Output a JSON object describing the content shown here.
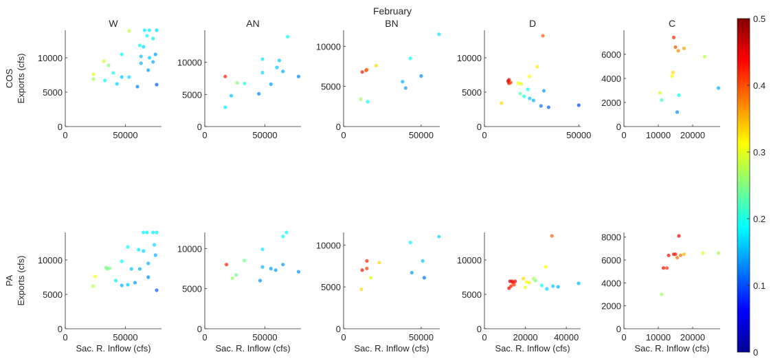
{
  "chart_data": {
    "type": "scatter",
    "title": "February",
    "row_labels": [
      "COS",
      "PA"
    ],
    "column_titles": [
      "W",
      "AN",
      "BN",
      "D",
      "C"
    ],
    "ylabel": "Exports (cfs)",
    "xlabel": "Sac. R. Inflow (cfs)",
    "colorbar": {
      "colormap": "jet",
      "range": [
        0,
        0.5
      ],
      "ticks": [
        "0",
        "0.1",
        "0.2",
        "0.3",
        "0.4",
        "0.5"
      ]
    },
    "panels": [
      {
        "row": "COS",
        "column": "W",
        "xlim": [
          0,
          80000
        ],
        "ylim": [
          0,
          14000
        ],
        "xticks": [
          0,
          50000
        ],
        "yticks": [
          0,
          5000,
          10000
        ],
        "points": [
          {
            "x": 23500,
            "y": 7600,
            "c": 0.3
          },
          {
            "x": 23500,
            "y": 6900,
            "c": 0.27
          },
          {
            "x": 32000,
            "y": 9500,
            "c": 0.29
          },
          {
            "x": 33000,
            "y": 6700,
            "c": 0.19
          },
          {
            "x": 36000,
            "y": 8900,
            "c": 0.25
          },
          {
            "x": 40000,
            "y": 7800,
            "c": 0.2
          },
          {
            "x": 43000,
            "y": 6200,
            "c": 0.17
          },
          {
            "x": 47000,
            "y": 10500,
            "c": 0.19
          },
          {
            "x": 47000,
            "y": 7200,
            "c": 0.16
          },
          {
            "x": 53000,
            "y": 7200,
            "c": 0.17
          },
          {
            "x": 53000,
            "y": 13900,
            "c": 0.28
          },
          {
            "x": 60000,
            "y": 5800,
            "c": 0.13
          },
          {
            "x": 62000,
            "y": 11800,
            "c": 0.19
          },
          {
            "x": 63000,
            "y": 10200,
            "c": 0.16
          },
          {
            "x": 63000,
            "y": 9200,
            "c": 0.15
          },
          {
            "x": 65000,
            "y": 11600,
            "c": 0.17
          },
          {
            "x": 66000,
            "y": 14000,
            "c": 0.18
          },
          {
            "x": 68000,
            "y": 13200,
            "c": 0.19
          },
          {
            "x": 69000,
            "y": 8200,
            "c": 0.14
          },
          {
            "x": 70000,
            "y": 14000,
            "c": 0.18
          },
          {
            "x": 70000,
            "y": 10000,
            "c": 0.16
          },
          {
            "x": 73000,
            "y": 12800,
            "c": 0.18
          },
          {
            "x": 73000,
            "y": 9400,
            "c": 0.15
          },
          {
            "x": 75000,
            "y": 10500,
            "c": 0.14
          },
          {
            "x": 76000,
            "y": 14000,
            "c": 0.17
          },
          {
            "x": 76000,
            "y": 6100,
            "c": 0.11
          }
        ]
      },
      {
        "row": "COS",
        "column": "AN",
        "xlim": [
          0,
          80000
        ],
        "ylim": [
          0,
          15000
        ],
        "xticks": [
          0,
          50000
        ],
        "yticks": [
          0,
          5000,
          10000
        ],
        "points": [
          {
            "x": 17000,
            "y": 7800,
            "c": 0.42
          },
          {
            "x": 17000,
            "y": 3000,
            "c": 0.18
          },
          {
            "x": 22000,
            "y": 4800,
            "c": 0.16
          },
          {
            "x": 27000,
            "y": 6800,
            "c": 0.25
          },
          {
            "x": 33000,
            "y": 6700,
            "c": 0.2
          },
          {
            "x": 45000,
            "y": 5100,
            "c": 0.13
          },
          {
            "x": 48000,
            "y": 8400,
            "c": 0.17
          },
          {
            "x": 48000,
            "y": 10500,
            "c": 0.18
          },
          {
            "x": 55000,
            "y": 6600,
            "c": 0.14
          },
          {
            "x": 60000,
            "y": 9200,
            "c": 0.16
          },
          {
            "x": 62000,
            "y": 10300,
            "c": 0.16
          },
          {
            "x": 65000,
            "y": 8600,
            "c": 0.15
          },
          {
            "x": 69000,
            "y": 14000,
            "c": 0.19
          },
          {
            "x": 78000,
            "y": 7800,
            "c": 0.13
          }
        ]
      },
      {
        "row": "COS",
        "column": "BN",
        "xlim": [
          0,
          62000
        ],
        "ylim": [
          0,
          12000
        ],
        "xticks": [
          0,
          50000
        ],
        "yticks": [
          0,
          5000,
          10000
        ],
        "points": [
          {
            "x": 11000,
            "y": 3400,
            "c": 0.27
          },
          {
            "x": 12000,
            "y": 6800,
            "c": 0.43
          },
          {
            "x": 14500,
            "y": 7000,
            "c": 0.41
          },
          {
            "x": 15000,
            "y": 7100,
            "c": 0.39
          },
          {
            "x": 15500,
            "y": 3100,
            "c": 0.19
          },
          {
            "x": 21000,
            "y": 7600,
            "c": 0.33
          },
          {
            "x": 38000,
            "y": 5600,
            "c": 0.15
          },
          {
            "x": 40000,
            "y": 4800,
            "c": 0.14
          },
          {
            "x": 43000,
            "y": 8500,
            "c": 0.19
          },
          {
            "x": 50000,
            "y": 6300,
            "c": 0.13
          },
          {
            "x": 61500,
            "y": 11500,
            "c": 0.18
          }
        ]
      },
      {
        "row": "COS",
        "column": "D",
        "xlim": [
          0,
          51000
        ],
        "ylim": [
          0,
          14000
        ],
        "xticks": [
          0,
          50000
        ],
        "yticks": [
          0,
          5000,
          10000
        ],
        "points": [
          {
            "x": 9000,
            "y": 3400,
            "c": 0.33
          },
          {
            "x": 12500,
            "y": 6600,
            "c": 0.46
          },
          {
            "x": 13000,
            "y": 6800,
            "c": 0.45
          },
          {
            "x": 13000,
            "y": 6300,
            "c": 0.44
          },
          {
            "x": 14000,
            "y": 6400,
            "c": 0.4
          },
          {
            "x": 18000,
            "y": 6300,
            "c": 0.31
          },
          {
            "x": 19000,
            "y": 4800,
            "c": 0.23
          },
          {
            "x": 19500,
            "y": 6200,
            "c": 0.3
          },
          {
            "x": 21000,
            "y": 4400,
            "c": 0.2
          },
          {
            "x": 23000,
            "y": 5400,
            "c": 0.19
          },
          {
            "x": 24000,
            "y": 7300,
            "c": 0.31
          },
          {
            "x": 24000,
            "y": 4100,
            "c": 0.16
          },
          {
            "x": 26000,
            "y": 3800,
            "c": 0.15
          },
          {
            "x": 28000,
            "y": 8700,
            "c": 0.32
          },
          {
            "x": 30000,
            "y": 3000,
            "c": 0.12
          },
          {
            "x": 31000,
            "y": 13200,
            "c": 0.39
          },
          {
            "x": 31500,
            "y": 5200,
            "c": 0.14
          },
          {
            "x": 34000,
            "y": 2800,
            "c": 0.11
          },
          {
            "x": 50000,
            "y": 3100,
            "c": 0.1
          }
        ]
      },
      {
        "row": "COS",
        "column": "C",
        "xlim": [
          0,
          28000
        ],
        "ylim": [
          0,
          8000
        ],
        "xticks": [
          0,
          10000,
          20000
        ],
        "yticks": [
          0,
          2000,
          4000,
          6000
        ],
        "points": [
          {
            "x": 10500,
            "y": 2800,
            "c": 0.29
          },
          {
            "x": 11000,
            "y": 2200,
            "c": 0.22
          },
          {
            "x": 14000,
            "y": 4200,
            "c": 0.31
          },
          {
            "x": 14300,
            "y": 4500,
            "c": 0.33
          },
          {
            "x": 14500,
            "y": 7400,
            "c": 0.42
          },
          {
            "x": 15000,
            "y": 6600,
            "c": 0.4
          },
          {
            "x": 15500,
            "y": 1200,
            "c": 0.13
          },
          {
            "x": 15800,
            "y": 6300,
            "c": 0.37
          },
          {
            "x": 16000,
            "y": 2600,
            "c": 0.19
          },
          {
            "x": 17500,
            "y": 6500,
            "c": 0.36
          },
          {
            "x": 23500,
            "y": 5800,
            "c": 0.28
          },
          {
            "x": 27500,
            "y": 3200,
            "c": 0.15
          }
        ]
      },
      {
        "row": "PA",
        "column": "W",
        "xlim": [
          0,
          80000
        ],
        "ylim": [
          0,
          14000
        ],
        "xticks": [
          0,
          50000
        ],
        "yticks": [
          0,
          5000,
          10000
        ],
        "points": [
          {
            "x": 23000,
            "y": 6200,
            "c": 0.28
          },
          {
            "x": 25000,
            "y": 7600,
            "c": 0.31
          },
          {
            "x": 34000,
            "y": 8900,
            "c": 0.25
          },
          {
            "x": 35000,
            "y": 8700,
            "c": 0.24
          },
          {
            "x": 37000,
            "y": 8800,
            "c": 0.25
          },
          {
            "x": 42000,
            "y": 7000,
            "c": 0.18
          },
          {
            "x": 47000,
            "y": 9800,
            "c": 0.19
          },
          {
            "x": 47000,
            "y": 6300,
            "c": 0.15
          },
          {
            "x": 52000,
            "y": 6400,
            "c": 0.16
          },
          {
            "x": 52000,
            "y": 11900,
            "c": 0.19
          },
          {
            "x": 55000,
            "y": 8700,
            "c": 0.16
          },
          {
            "x": 58000,
            "y": 6700,
            "c": 0.14
          },
          {
            "x": 61000,
            "y": 11500,
            "c": 0.18
          },
          {
            "x": 62000,
            "y": 8700,
            "c": 0.15
          },
          {
            "x": 65000,
            "y": 11300,
            "c": 0.17
          },
          {
            "x": 65000,
            "y": 14000,
            "c": 0.18
          },
          {
            "x": 68000,
            "y": 14000,
            "c": 0.18
          },
          {
            "x": 69000,
            "y": 9500,
            "c": 0.15
          },
          {
            "x": 69000,
            "y": 7500,
            "c": 0.13
          },
          {
            "x": 73000,
            "y": 14000,
            "c": 0.18
          },
          {
            "x": 74000,
            "y": 12200,
            "c": 0.17
          },
          {
            "x": 75000,
            "y": 10700,
            "c": 0.15
          },
          {
            "x": 76000,
            "y": 14000,
            "c": 0.18
          },
          {
            "x": 76000,
            "y": 5600,
            "c": 0.11
          }
        ]
      },
      {
        "row": "PA",
        "column": "AN",
        "xlim": [
          0,
          80000
        ],
        "ylim": [
          0,
          12000
        ],
        "xticks": [
          0,
          50000
        ],
        "yticks": [
          0,
          5000,
          10000
        ],
        "points": [
          {
            "x": 18000,
            "y": 8000,
            "c": 0.42
          },
          {
            "x": 23000,
            "y": 6300,
            "c": 0.26
          },
          {
            "x": 26000,
            "y": 6700,
            "c": 0.24
          },
          {
            "x": 33000,
            "y": 8500,
            "c": 0.24
          },
          {
            "x": 46000,
            "y": 6000,
            "c": 0.13
          },
          {
            "x": 48000,
            "y": 9900,
            "c": 0.18
          },
          {
            "x": 48000,
            "y": 7700,
            "c": 0.15
          },
          {
            "x": 55000,
            "y": 7500,
            "c": 0.14
          },
          {
            "x": 59000,
            "y": 7300,
            "c": 0.14
          },
          {
            "x": 65000,
            "y": 8000,
            "c": 0.14
          },
          {
            "x": 65000,
            "y": 11500,
            "c": 0.19
          },
          {
            "x": 68000,
            "y": 12000,
            "c": 0.19
          },
          {
            "x": 78000,
            "y": 7100,
            "c": 0.13
          }
        ]
      },
      {
        "row": "PA",
        "column": "BN",
        "xlim": [
          0,
          62000
        ],
        "ylim": [
          0,
          11500
        ],
        "xticks": [
          0,
          50000
        ],
        "yticks": [
          0,
          5000,
          10000
        ],
        "points": [
          {
            "x": 11500,
            "y": 4700,
            "c": 0.33
          },
          {
            "x": 12000,
            "y": 7000,
            "c": 0.43
          },
          {
            "x": 15000,
            "y": 8100,
            "c": 0.42
          },
          {
            "x": 15000,
            "y": 7200,
            "c": 0.41
          },
          {
            "x": 17500,
            "y": 6100,
            "c": 0.3
          },
          {
            "x": 23000,
            "y": 7900,
            "c": 0.33
          },
          {
            "x": 43000,
            "y": 10300,
            "c": 0.19
          },
          {
            "x": 44000,
            "y": 6700,
            "c": 0.14
          },
          {
            "x": 51000,
            "y": 8100,
            "c": 0.16
          },
          {
            "x": 52000,
            "y": 6100,
            "c": 0.12
          },
          {
            "x": 61500,
            "y": 11000,
            "c": 0.17
          }
        ]
      },
      {
        "row": "PA",
        "column": "D",
        "xlim": [
          0,
          47000
        ],
        "ylim": [
          0,
          14000
        ],
        "xticks": [
          0,
          20000,
          40000
        ],
        "yticks": [
          0,
          5000,
          10000
        ],
        "points": [
          {
            "x": 12000,
            "y": 5900,
            "c": 0.44
          },
          {
            "x": 12500,
            "y": 6900,
            "c": 0.46
          },
          {
            "x": 13000,
            "y": 6200,
            "c": 0.42
          },
          {
            "x": 13500,
            "y": 6900,
            "c": 0.45
          },
          {
            "x": 14000,
            "y": 6700,
            "c": 0.43
          },
          {
            "x": 14500,
            "y": 6400,
            "c": 0.41
          },
          {
            "x": 15000,
            "y": 6900,
            "c": 0.44
          },
          {
            "x": 19000,
            "y": 7300,
            "c": 0.33
          },
          {
            "x": 20000,
            "y": 6000,
            "c": 0.3
          },
          {
            "x": 20500,
            "y": 6800,
            "c": 0.31
          },
          {
            "x": 22000,
            "y": 6700,
            "c": 0.3
          },
          {
            "x": 24000,
            "y": 7300,
            "c": 0.27
          },
          {
            "x": 25000,
            "y": 7000,
            "c": 0.25
          },
          {
            "x": 28000,
            "y": 6300,
            "c": 0.19
          },
          {
            "x": 30000,
            "y": 9000,
            "c": 0.31
          },
          {
            "x": 30500,
            "y": 5800,
            "c": 0.17
          },
          {
            "x": 33000,
            "y": 13500,
            "c": 0.39
          },
          {
            "x": 33500,
            "y": 6200,
            "c": 0.16
          },
          {
            "x": 36000,
            "y": 6100,
            "c": 0.15
          },
          {
            "x": 46000,
            "y": 6600,
            "c": 0.15
          }
        ]
      },
      {
        "row": "PA",
        "column": "C",
        "xlim": [
          0,
          28000
        ],
        "ylim": [
          0,
          8400
        ],
        "xticks": [
          0,
          10000,
          20000
        ],
        "yticks": [
          0,
          2000,
          4000,
          6000,
          8000
        ],
        "points": [
          {
            "x": 11000,
            "y": 3000,
            "c": 0.27
          },
          {
            "x": 11500,
            "y": 5300,
            "c": 0.43
          },
          {
            "x": 12500,
            "y": 5300,
            "c": 0.41
          },
          {
            "x": 13000,
            "y": 6400,
            "c": 0.43
          },
          {
            "x": 14500,
            "y": 6500,
            "c": 0.44
          },
          {
            "x": 15000,
            "y": 6500,
            "c": 0.42
          },
          {
            "x": 15500,
            "y": 6200,
            "c": 0.38
          },
          {
            "x": 16000,
            "y": 8100,
            "c": 0.44
          },
          {
            "x": 16500,
            "y": 6400,
            "c": 0.38
          },
          {
            "x": 17500,
            "y": 6500,
            "c": 0.35
          },
          {
            "x": 23000,
            "y": 6600,
            "c": 0.3
          },
          {
            "x": 27500,
            "y": 6600,
            "c": 0.27
          }
        ]
      }
    ]
  }
}
